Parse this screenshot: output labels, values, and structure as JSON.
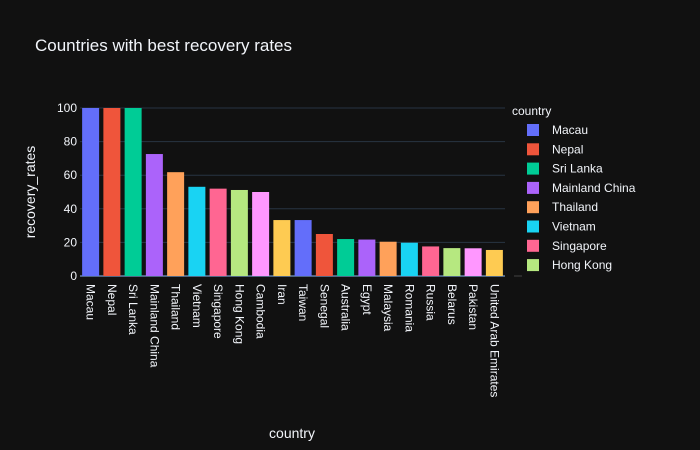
{
  "chart_data": {
    "type": "bar",
    "title": "Countries with best recovery rates",
    "xlabel": "country",
    "ylabel": "recovery_rates",
    "ylim": [
      0,
      100
    ],
    "yticks": [
      0,
      20,
      40,
      60,
      80,
      100
    ],
    "grid": true,
    "legend_title": "country",
    "legend_position": "right",
    "categories": [
      "Macau",
      "Nepal",
      "Sri Lanka",
      "Mainland China",
      "Thailand",
      "Vietnam",
      "Singapore",
      "Hong Kong",
      "Cambodia",
      "Iran",
      "Taiwan",
      "Senegal",
      "Australia",
      "Egypt",
      "Malaysia",
      "Romania",
      "Russia",
      "Belarus",
      "Pakistan",
      "United Arab Emirates"
    ],
    "values": [
      100,
      100,
      100,
      72.6,
      61.8,
      53.1,
      52.0,
      51.2,
      50.0,
      33.3,
      33.3,
      25.0,
      22.0,
      21.7,
      20.4,
      19.8,
      17.6,
      16.6,
      16.5,
      15.5
    ],
    "colors": [
      "#636efa",
      "#EF553B",
      "#00cc96",
      "#ab63fa",
      "#FFA15A",
      "#19d3f3",
      "#FF6692",
      "#B6E880",
      "#FF97FF",
      "#FECB52",
      "#636efa",
      "#EF553B",
      "#00cc96",
      "#ab63fa",
      "#FFA15A",
      "#19d3f3",
      "#FF6692",
      "#B6E880",
      "#FF97FF",
      "#FECB52"
    ],
    "legend_entries": [
      "Macau",
      "Nepal",
      "Sri Lanka",
      "Mainland China",
      "Thailand",
      "Vietnam",
      "Singapore",
      "Hong Kong"
    ],
    "background": "#111111"
  }
}
